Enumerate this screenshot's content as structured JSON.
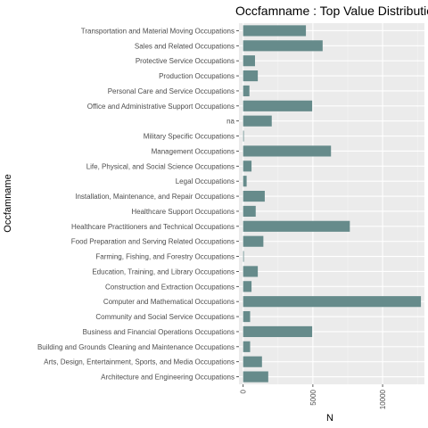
{
  "chart_data": {
    "type": "bar",
    "orientation": "horizontal",
    "title": "Occfamname : Top Value Distribution",
    "xlabel": "N",
    "ylabel": "Occfamname",
    "xlim": [
      -300,
      13000
    ],
    "x_ticks": [
      0,
      5000,
      10000
    ],
    "grid": true,
    "legend": "none",
    "categories": [
      "Transportation and Material Moving Occupations",
      "Sales and Related Occupations",
      "Protective Service Occupations",
      "Production Occupations",
      "Personal Care and Service Occupations",
      "Office and Administrative Support Occupations",
      "na",
      "Military Specific Occupations",
      "Management Occupations",
      "Life, Physical, and Social Science Occupations",
      "Legal Occupations",
      "Installation, Maintenance, and Repair Occupations",
      "Healthcare Support Occupations",
      "Healthcare Practitioners and Technical Occupations",
      "Food Preparation and Serving Related Occupations",
      "Farming, Fishing, and Forestry Occupations",
      "Education, Training, and Library Occupations",
      "Construction and Extraction Occupations",
      "Computer and Mathematical Occupations",
      "Community and Social Service Occupations",
      "Business and Financial Operations Occupations",
      "Building and Grounds Cleaning and Maintenance Occupations",
      "Arts, Design, Entertainment, Sports, and Media Occupations",
      "Architecture and Engineering Occupations"
    ],
    "values": [
      4500,
      5700,
      850,
      1050,
      450,
      4950,
      2050,
      50,
      6300,
      600,
      250,
      1550,
      900,
      7650,
      1450,
      20,
      1050,
      600,
      12750,
      500,
      4950,
      500,
      1350,
      1800
    ]
  },
  "colors": {
    "bar": "#668B8B",
    "panel": "#EBEBEB",
    "grid_major": "#FFFFFF",
    "grid_minor": "#F5F5F5"
  }
}
